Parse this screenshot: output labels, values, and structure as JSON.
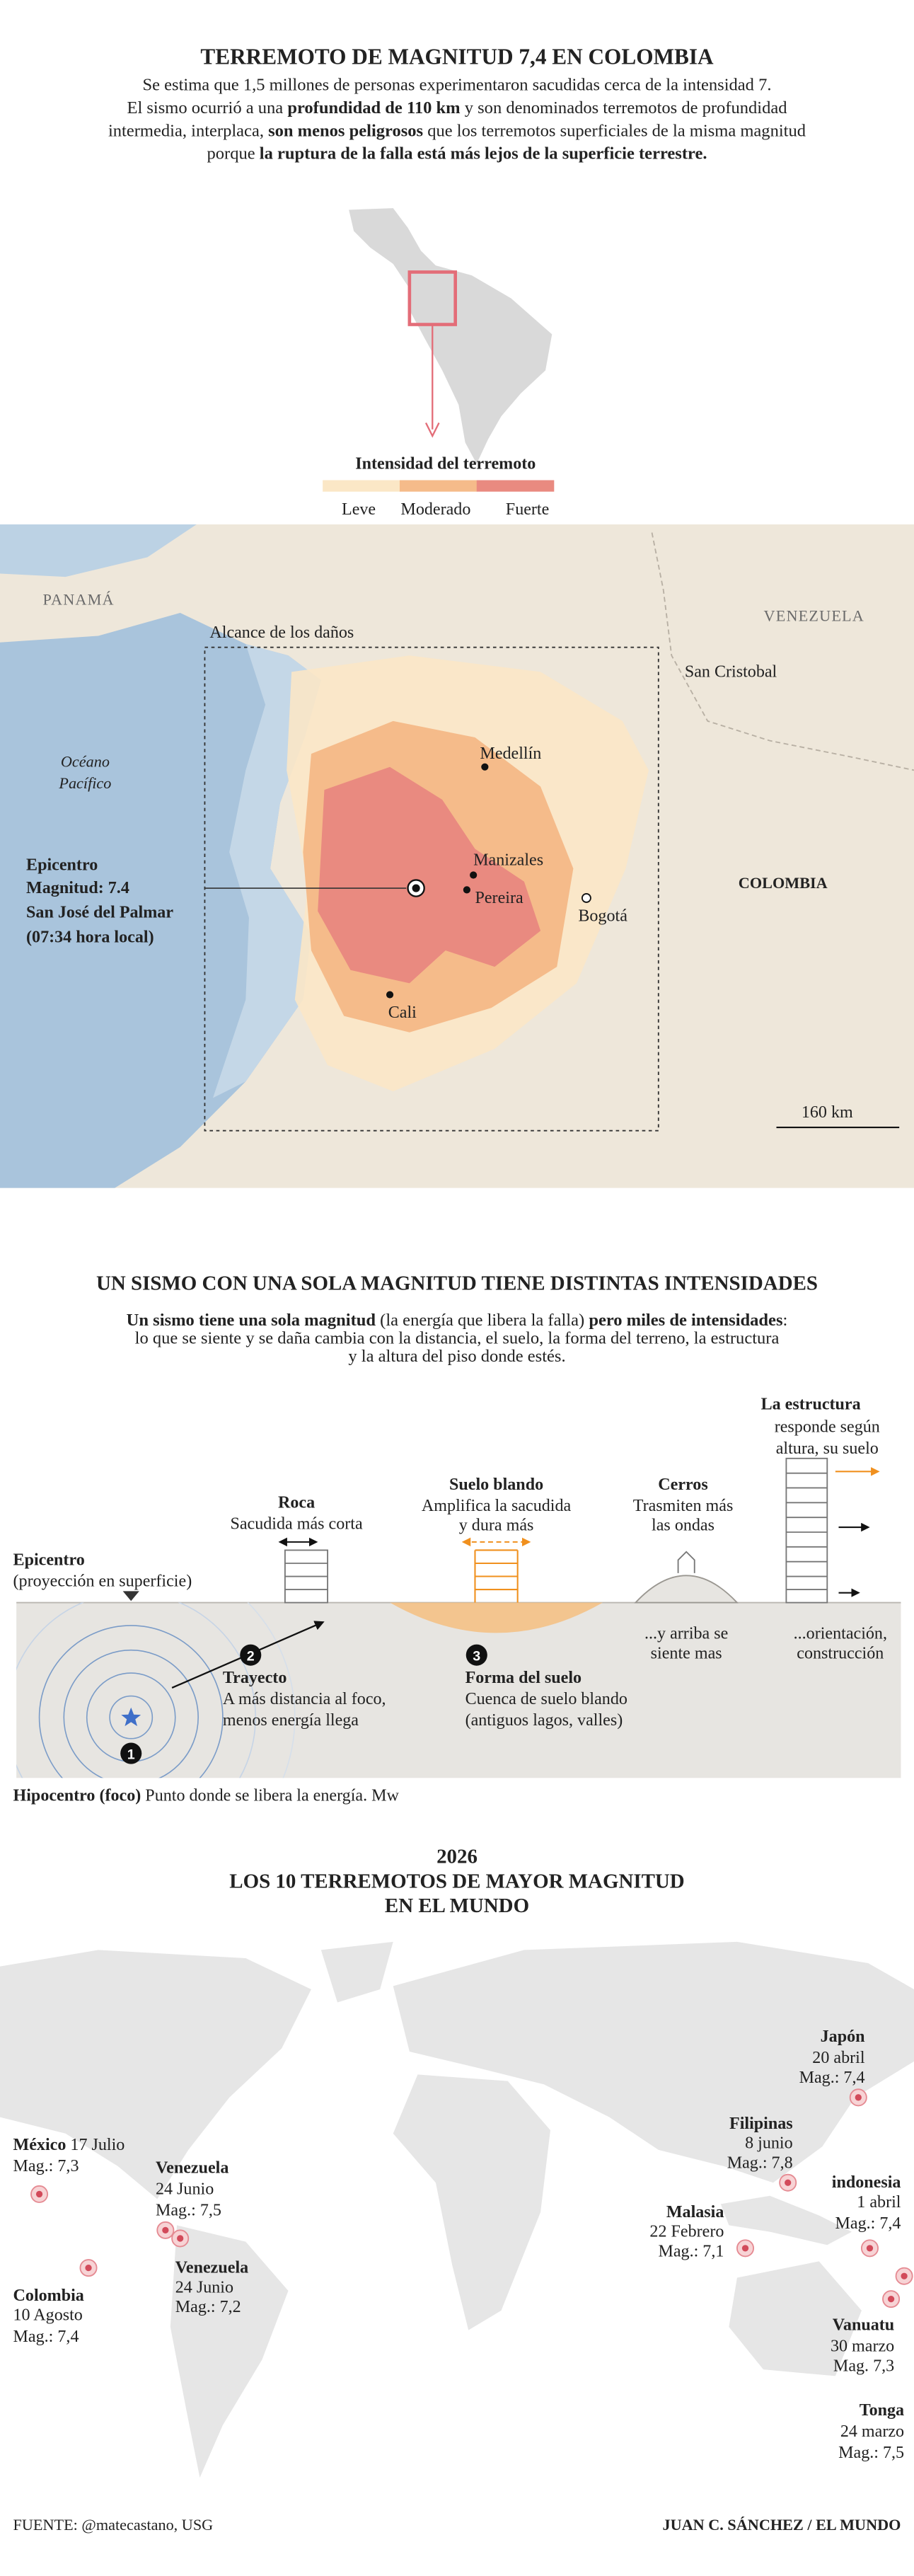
{
  "header": {
    "title": "TERREMOTO DE MAGNITUD 7,4 EN COLOMBIA",
    "intro": [
      "Se estima que 1,5 millones de personas experimentaron sacudidas cerca de la intensidad 7.",
      "El sismo ocurrió a una ",
      "profundidad de 110 km",
      " y son denominados terremotos de profundidad",
      "intermedia, interplaca, ",
      "son menos peligrosos",
      " que los terremotos superficiales de la misma magnitud",
      "porque ",
      "la ruptura de la falla está más lejos de la superficie terrestre."
    ]
  },
  "legend": {
    "title": "Intensidad del terremoto",
    "levels": [
      {
        "label": "Leve",
        "color": "#fbe7c6"
      },
      {
        "label": "Moderado",
        "color": "#f5bb8a"
      },
      {
        "label": "Fuerte",
        "color": "#e98a80"
      }
    ]
  },
  "map": {
    "damage_label": "Alcance de los daños",
    "places": [
      "PANAMÁ",
      "VENEZUELA",
      "San Cristobal",
      "Océano",
      "Pacífico",
      "Medellín",
      "Manizales",
      "Pereira",
      "Bogotá",
      "Cali",
      "COLOMBIA"
    ],
    "epicenter": [
      "Epicentro",
      "Magnitud: 7.4",
      "San José del Palmar",
      "(07:34 hora local)"
    ],
    "scale": "160 km"
  },
  "section2": {
    "title": "UN SISMO CON UNA SOLA MAGNITUD TIENE DISTINTAS INTENSIDADES",
    "intro": [
      "Un sismo tiene una sola magnitud",
      " (la energía que libera la falla) ",
      "pero miles de intensidades",
      ":",
      "lo que se siente y se daña cambia con la distancia, el suelo, la forma del terreno, la estructura",
      "y la altura del piso donde estés."
    ],
    "diagram": {
      "epicenter": [
        "Epicentro",
        "(proyección en superficie)"
      ],
      "rock": [
        "Roca",
        "Sacudida más corta"
      ],
      "soft_soil": [
        "Suelo blando",
        "Amplifica la sacudida",
        "y dura más"
      ],
      "hills": [
        "Cerros",
        "Trasmiten más",
        "las ondas"
      ],
      "hills_note": [
        "...y arriba se",
        "siente mas"
      ],
      "structure": [
        "La estructura",
        "responde según",
        "altura, su suelo"
      ],
      "structure_note": [
        "...orientación,",
        "construcción"
      ],
      "steps": [
        {
          "number": "1"
        },
        {
          "number": "2",
          "title": "Trayecto",
          "lines": [
            "A más distancia al foco,",
            "menos energía llega"
          ]
        },
        {
          "number": "3",
          "title": "Forma del suelo",
          "lines": [
            "Cuenca de suelo blando",
            "(antiguos lagos, valles)"
          ]
        }
      ]
    },
    "footnote": [
      "Hipocentro (foco)",
      " Punto donde se libera la energía. Mw"
    ]
  },
  "section3": {
    "year": "2026",
    "title": [
      "LOS 10 TERREMOTOS DE MAYOR MAGNITUD",
      "EN EL MUNDO"
    ],
    "quakes": [
      {
        "place": "México",
        "date": " 17 Julio",
        "magnitude": "Mag.: 7,3"
      },
      {
        "place": "Venezuela",
        "date": "24 Junio",
        "magnitude": "Mag.: 7,5"
      },
      {
        "place": "Venezuela",
        "date": "24 Junio",
        "magnitude": "Mag.: 7,2"
      },
      {
        "place": "Colombia",
        "date": "10 Agosto",
        "magnitude": "Mag.: 7,4"
      },
      {
        "place": "Japón",
        "date": "20 abril",
        "magnitude": "Mag.: 7,4"
      },
      {
        "place": "Filipinas",
        "date": "8 junio",
        "magnitude": "Mag.: 7,8"
      },
      {
        "place": "indonesia",
        "date": "1 abril",
        "magnitude": "Mag.: 7,4"
      },
      {
        "place": "Malasia",
        "date": "22 Febrero",
        "magnitude": "Mag.: 7,1"
      },
      {
        "place": "Vanuatu",
        "date": "30 marzo",
        "magnitude": "Mag. 7,3"
      },
      {
        "place": "Tonga",
        "date": "24 marzo",
        "magnitude": "Mag.: 7,5"
      }
    ]
  },
  "footer": {
    "source": "FUENTE: @matecastano, USG",
    "credit": "JUAN C. SÁNCHEZ / EL MUNDO"
  }
}
